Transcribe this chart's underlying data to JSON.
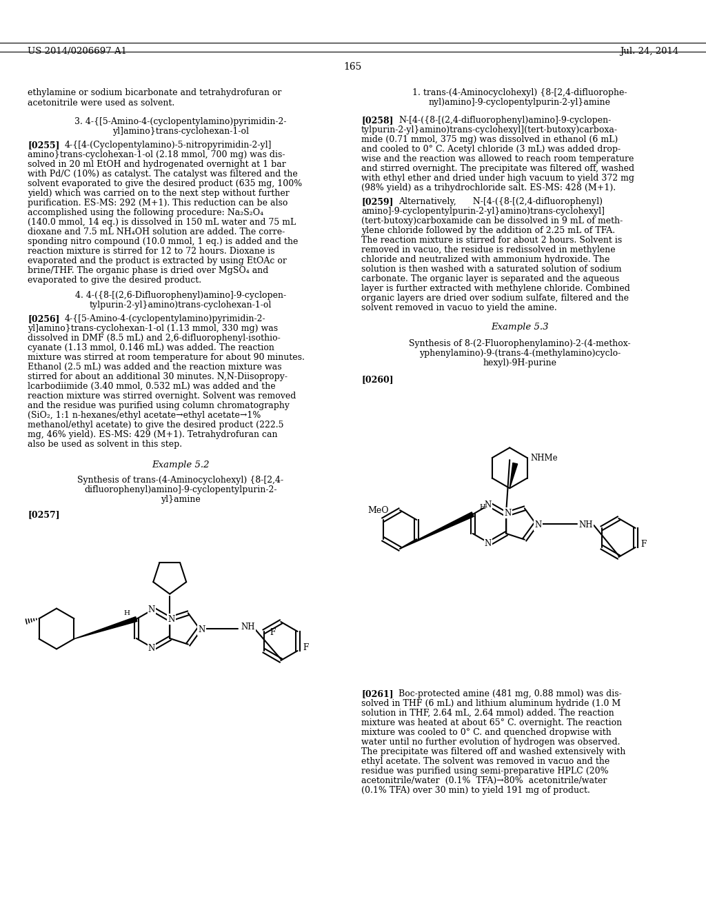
{
  "background_color": "#ffffff",
  "page_number": "165",
  "header_left": "US 2014/0206697 A1",
  "header_right": "Jul. 24, 2014"
}
